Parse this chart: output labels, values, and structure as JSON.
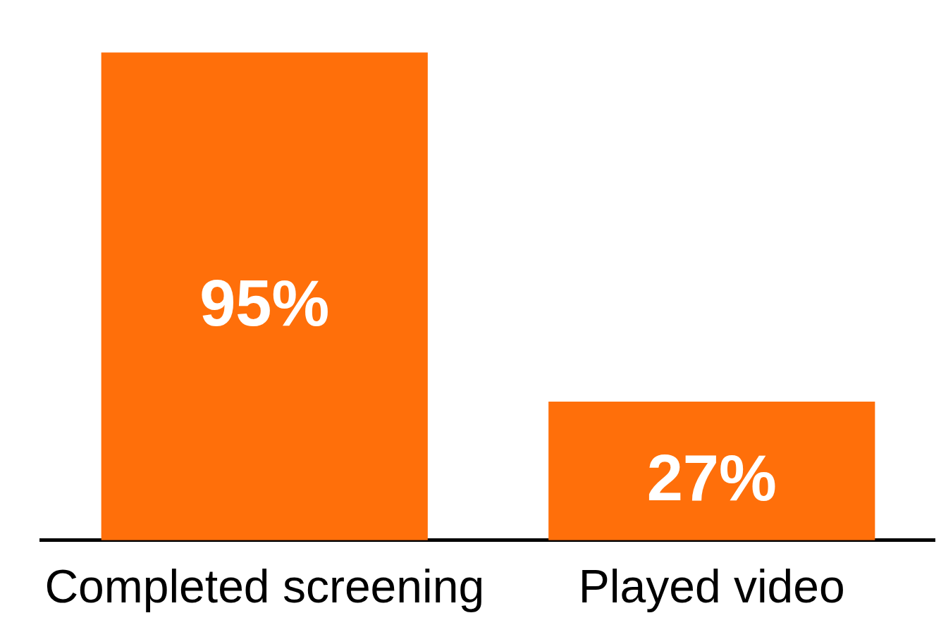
{
  "chart_data": {
    "type": "bar",
    "categories": [
      "Completed screening",
      "Played video"
    ],
    "values": [
      95,
      27
    ],
    "color": "#ff6f0a",
    "value_labels": [
      "95%",
      "27%"
    ],
    "grid": false,
    "legend": false,
    "tick_labels": "x"
  }
}
